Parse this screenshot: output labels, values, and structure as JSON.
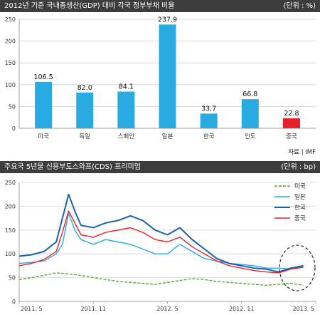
{
  "chart_data": [
    {
      "type": "bar",
      "title": "2012년 기준 국내총생산(GDP) 대비 각국 정부부채 비율",
      "unit": "(단위 : %)",
      "source": "자료 | IMF",
      "categories": [
        "미국",
        "독일",
        "스페인",
        "일본",
        "한국",
        "인도",
        "중국"
      ],
      "values": [
        106.5,
        82.0,
        84.1,
        237.9,
        33.7,
        66.8,
        22.8
      ],
      "value_labels": [
        "106.5",
        "82.0",
        "84.1",
        "237.9",
        "33.7",
        "66.8",
        "22.8"
      ],
      "ylim": [
        0,
        250
      ],
      "yticks": [
        0,
        50,
        100,
        150,
        200,
        250
      ],
      "colors": [
        "#29abe2",
        "#29abe2",
        "#29abe2",
        "#29abe2",
        "#29abe2",
        "#29abe2",
        "#e8202a"
      ],
      "grid": true
    },
    {
      "type": "line",
      "title": "주요국 5년물 신용부도스와프(CDS) 프리미엄",
      "unit": "(단위 : bp)",
      "ylim": [
        0,
        250
      ],
      "yticks": [
        0,
        50,
        100,
        150,
        200,
        250
      ],
      "x_ticks": [
        "2011. 5",
        "2011. 11",
        "2012. 5",
        "2012. 11",
        "2013. 5"
      ],
      "x_range": [
        0,
        24
      ],
      "legend_position": "top-right",
      "grid": true,
      "series": [
        {
          "name": "미국",
          "color": "#5aa832",
          "dash": true,
          "x": [
            0,
            1,
            2,
            3,
            4,
            5,
            6,
            7,
            8,
            9,
            10,
            11,
            12,
            13,
            14,
            15,
            16,
            17,
            18,
            19,
            20,
            21,
            22,
            23
          ],
          "values": [
            46,
            50,
            55,
            60,
            58,
            55,
            50,
            46,
            42,
            40,
            38,
            36,
            40,
            44,
            48,
            46,
            42,
            40,
            38,
            36,
            34,
            36,
            38,
            34
          ]
        },
        {
          "name": "일본",
          "color": "#29abe2",
          "dash": false,
          "x": [
            0,
            1,
            2,
            3,
            3.5,
            4,
            4.5,
            5,
            6,
            7,
            8,
            9,
            10,
            11,
            12,
            13,
            14,
            15,
            16,
            17,
            18,
            19,
            20,
            21,
            22,
            23
          ],
          "values": [
            80,
            82,
            85,
            100,
            120,
            185,
            150,
            130,
            120,
            130,
            125,
            120,
            110,
            100,
            100,
            120,
            105,
            90,
            85,
            80,
            78,
            75,
            70,
            70,
            68,
            75
          ]
        },
        {
          "name": "한국",
          "color": "#1a62ad",
          "dash": false,
          "x": [
            0,
            1,
            2,
            3,
            3.5,
            4,
            4.5,
            5,
            6,
            7,
            8,
            9,
            10,
            11,
            12,
            13,
            14,
            15,
            16,
            17,
            18,
            19,
            20,
            21,
            22,
            23
          ],
          "values": [
            95,
            98,
            105,
            125,
            175,
            225,
            190,
            160,
            155,
            165,
            170,
            180,
            170,
            150,
            140,
            155,
            130,
            110,
            90,
            80,
            75,
            70,
            68,
            62,
            70,
            75
          ]
        },
        {
          "name": "중국",
          "color": "#e8202a",
          "dash": false,
          "x": [
            0,
            1,
            2,
            3,
            3.5,
            4,
            4.5,
            5,
            6,
            7,
            8,
            9,
            10,
            11,
            12,
            13,
            14,
            15,
            16,
            17,
            18,
            19,
            20,
            21,
            22,
            23
          ],
          "values": [
            75,
            80,
            88,
            105,
            145,
            190,
            165,
            140,
            135,
            145,
            150,
            155,
            145,
            130,
            125,
            135,
            115,
            100,
            85,
            75,
            70,
            65,
            62,
            60,
            68,
            72
          ]
        }
      ]
    }
  ]
}
